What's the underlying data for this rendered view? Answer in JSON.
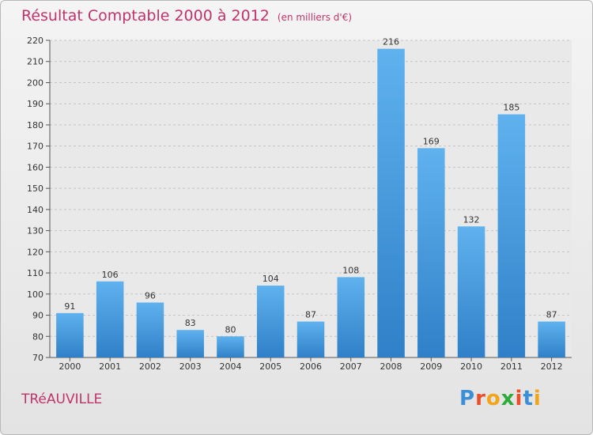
{
  "header": {
    "title": "Résultat Comptable 2000 à 2012",
    "subtitle": "(en milliers d'€)"
  },
  "footer": {
    "town": "TRéAUVILLE",
    "logo_letters": [
      "P",
      "r",
      "o",
      "x",
      "i",
      "t",
      "i"
    ],
    "logo_colors": [
      "#3a8fd6",
      "#e8502a",
      "#f2a51a",
      "#2eaa3a",
      "#e8502a",
      "#3a8fd6",
      "#f2a51a"
    ]
  },
  "chart_data": {
    "type": "bar",
    "title": "Résultat Comptable 2000 à 2012",
    "subtitle": "(en milliers d'€)",
    "categories": [
      "2000",
      "2001",
      "2002",
      "2003",
      "2004",
      "2005",
      "2006",
      "2007",
      "2008",
      "2009",
      "2010",
      "2011",
      "2012"
    ],
    "values": [
      91,
      106,
      96,
      83,
      80,
      104,
      87,
      108,
      216,
      169,
      132,
      185,
      87
    ],
    "ylim": [
      70,
      220
    ],
    "yticks": [
      70,
      80,
      90,
      100,
      110,
      120,
      130,
      140,
      150,
      160,
      170,
      180,
      190,
      200,
      210,
      220
    ],
    "grid": true,
    "bar_color": "#4a9fe0"
  }
}
